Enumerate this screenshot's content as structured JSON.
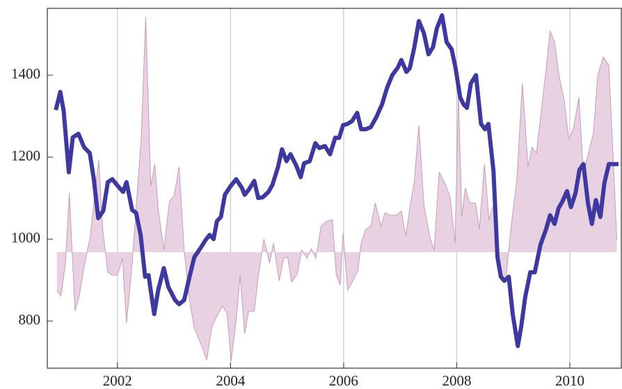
{
  "chart_data": {
    "type": "line",
    "xlim": [
      2000.76,
      2010.91
    ],
    "ylim": [
      685,
      1563
    ],
    "xticks": [
      2002,
      2004,
      2006,
      2008,
      2010
    ],
    "yticks": [
      800,
      1000,
      1200,
      1400
    ],
    "grid": "x",
    "series": [
      {
        "type": "area",
        "color": "#e8d2e2",
        "edge_color": "#c99ab9",
        "baseline": 968,
        "x": [
          2000.93,
          2001.0,
          2001.08,
          2001.15,
          2001.25,
          2001.32,
          2001.42,
          2001.52,
          2001.59,
          2001.67,
          2001.74,
          2001.83,
          2001.91,
          2002.0,
          2002.09,
          2002.16,
          2002.26,
          2002.33,
          2002.42,
          2002.5,
          2002.59,
          2002.66,
          2002.72,
          2002.82,
          2002.92,
          2003.0,
          2003.09,
          2003.18,
          2003.27,
          2003.36,
          2003.49,
          2003.58,
          2003.67,
          2003.76,
          2003.86,
          2003.94,
          2004.01,
          2004.1,
          2004.17,
          2004.25,
          2004.32,
          2004.42,
          2004.49,
          2004.59,
          2004.69,
          2004.76,
          2004.86,
          2004.94,
          2005.01,
          2005.08,
          2005.18,
          2005.26,
          2005.35,
          2005.43,
          2005.51,
          2005.6,
          2005.7,
          2005.8,
          2005.87,
          2005.94,
          2005.99,
          2006.07,
          2006.16,
          2006.25,
          2006.31,
          2006.39,
          2006.48,
          2006.56,
          2006.66,
          2006.73,
          2006.83,
          2006.93,
          2007.02,
          2007.1,
          2007.17,
          2007.25,
          2007.33,
          2007.42,
          2007.52,
          2007.6,
          2007.69,
          2007.79,
          2007.88,
          2007.97,
          2008.03,
          2008.09,
          2008.15,
          2008.23,
          2008.33,
          2008.4,
          2008.49,
          2008.57,
          2008.67,
          2008.77,
          2008.87,
          2008.97,
          2009.06,
          2009.16,
          2009.26,
          2009.33,
          2009.41,
          2009.48,
          2009.58,
          2009.65,
          2009.73,
          2009.81,
          2009.9,
          2009.98,
          2010.06,
          2010.16,
          2010.24,
          2010.33,
          2010.42,
          2010.49,
          2010.59,
          2010.69,
          2010.76,
          2010.83
        ],
        "values": [
          875,
          861,
          939,
          1112,
          824,
          858,
          939,
          1007,
          1095,
          1193,
          1024,
          919,
          912,
          912,
          953,
          795,
          939,
          1075,
          1244,
          1542,
          1129,
          1183,
          1075,
          973,
          1092,
          1105,
          1176,
          973,
          854,
          783,
          739,
          705,
          786,
          812,
          837,
          817,
          702,
          803,
          912,
          769,
          824,
          824,
          908,
          1000,
          942,
          990,
          898,
          953,
          956,
          895,
          915,
          973,
          953,
          976,
          953,
          1031,
          1044,
          1047,
          912,
          888,
          1015,
          875,
          898,
          922,
          990,
          1024,
          1031,
          1088,
          1031,
          1064,
          1058,
          1058,
          1068,
          1007,
          1075,
          1142,
          1278,
          1083,
          1007,
          973,
          1163,
          1136,
          1105,
          990,
          1353,
          1054,
          1125,
          1088,
          1088,
          1024,
          1183,
          1047,
          1092,
          905,
          905,
          1041,
          1139,
          1380,
          1176,
          1224,
          1210,
          1295,
          1414,
          1508,
          1481,
          1397,
          1339,
          1244,
          1268,
          1346,
          1159,
          1210,
          1261,
          1397,
          1444,
          1424,
          1217,
          997
        ]
      },
      {
        "type": "line",
        "color": "#3d39a0",
        "x": [
          2000.91,
          2000.99,
          2001.05,
          2001.14,
          2001.21,
          2001.31,
          2001.41,
          2001.51,
          2001.58,
          2001.66,
          2001.75,
          2001.83,
          2001.91,
          2002.01,
          2002.1,
          2002.16,
          2002.26,
          2002.33,
          2002.41,
          2002.49,
          2002.55,
          2002.65,
          2002.72,
          2002.82,
          2002.9,
          2003.02,
          2003.09,
          2003.18,
          2003.27,
          2003.36,
          2003.46,
          2003.56,
          2003.63,
          2003.7,
          2003.76,
          2003.83,
          2003.9,
          2004.0,
          2004.1,
          2004.2,
          2004.25,
          2004.32,
          2004.42,
          2004.49,
          2004.57,
          2004.67,
          2004.74,
          2004.84,
          2004.91,
          2004.99,
          2005.06,
          2005.16,
          2005.24,
          2005.3,
          2005.4,
          2005.5,
          2005.57,
          2005.67,
          2005.76,
          2005.85,
          2005.92,
          2005.99,
          2006.07,
          2006.15,
          2006.24,
          2006.31,
          2006.39,
          2006.48,
          2006.58,
          2006.68,
          2006.77,
          2006.86,
          2006.96,
          2007.02,
          2007.11,
          2007.17,
          2007.25,
          2007.33,
          2007.42,
          2007.5,
          2007.58,
          2007.65,
          2007.74,
          2007.82,
          2007.91,
          2007.98,
          2008.06,
          2008.12,
          2008.18,
          2008.25,
          2008.34,
          2008.43,
          2008.5,
          2008.56,
          2008.65,
          2008.72,
          2008.78,
          2008.84,
          2008.92,
          2008.99,
          2009.08,
          2009.14,
          2009.21,
          2009.3,
          2009.38,
          2009.48,
          2009.58,
          2009.65,
          2009.73,
          2009.8,
          2009.87,
          2009.95,
          2010.02,
          2010.1,
          2010.17,
          2010.24,
          2010.32,
          2010.39,
          2010.46,
          2010.54,
          2010.61,
          2010.69,
          2010.76,
          2010.86
        ],
        "values": [
          1315,
          1359,
          1312,
          1163,
          1248,
          1257,
          1224,
          1210,
          1149,
          1051,
          1069,
          1139,
          1146,
          1129,
          1115,
          1139,
          1071,
          1064,
          1010,
          908,
          912,
          817,
          875,
          929,
          883,
          851,
          841,
          851,
          905,
          956,
          976,
          998,
          1010,
          1000,
          1044,
          1054,
          1108,
          1129,
          1146,
          1125,
          1108,
          1120,
          1142,
          1100,
          1102,
          1115,
          1132,
          1176,
          1219,
          1190,
          1207,
          1180,
          1151,
          1185,
          1190,
          1234,
          1222,
          1227,
          1207,
          1247,
          1247,
          1278,
          1281,
          1288,
          1308,
          1268,
          1268,
          1273,
          1298,
          1329,
          1370,
          1400,
          1419,
          1437,
          1408,
          1417,
          1468,
          1532,
          1502,
          1451,
          1468,
          1515,
          1546,
          1481,
          1463,
          1417,
          1346,
          1329,
          1320,
          1380,
          1400,
          1281,
          1268,
          1281,
          1166,
          956,
          908,
          898,
          908,
          817,
          739,
          786,
          858,
          919,
          919,
          986,
          1024,
          1058,
          1037,
          1075,
          1092,
          1117,
          1078,
          1112,
          1169,
          1183,
          1088,
          1037,
          1095,
          1054,
          1136,
          1183,
          1183,
          1183
        ]
      }
    ]
  }
}
